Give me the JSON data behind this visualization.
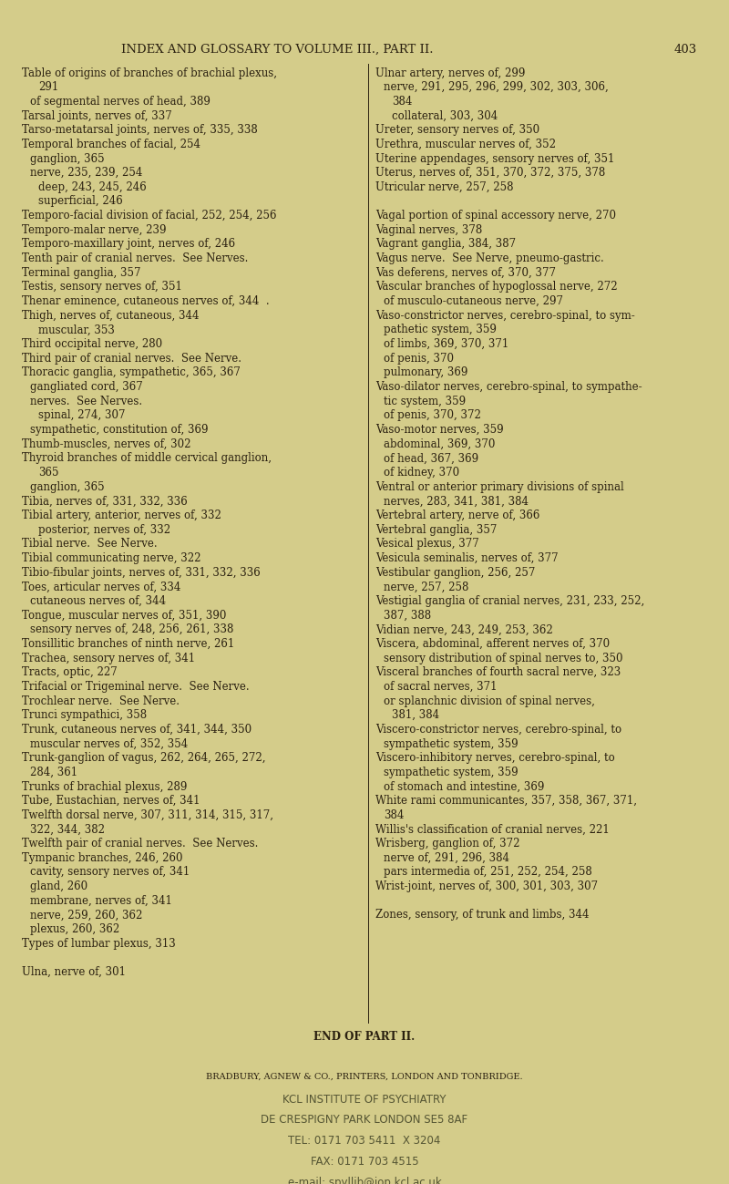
{
  "bg_color": "#d4cc8a",
  "header": "INDEX AND GLOSSARY TO VOLUME III., PART II.",
  "page_num": "403",
  "left_col_lines": [
    "Table of origins of branches of brachial plexus,",
    "        291",
    "    of segmental nerves of head, 389",
    "Tarsal joints, nerves of, 337",
    "Tarso-metatarsal joints, nerves of, 335, 338",
    "Temporal branches of facial, 254",
    "    ganglion, 365",
    "    nerve, 235, 239, 254",
    "        deep, 243, 245, 246",
    "        superficial, 246",
    "Temporo-facial division of facial, 252, 254, 256",
    "Temporo-malar nerve, 239",
    "Temporo-maxillary joint, nerves of, 246",
    "Tenth pair of cranial nerves.  See Nerves.",
    "Terminal ganglia, 357",
    "Testis, sensory nerves of, 351",
    "Thenar eminence, cutaneous nerves of, 344  .",
    "Thigh, nerves of, cutaneous, 344",
    "        muscular, 353",
    "Third occipital nerve, 280",
    "Third pair of cranial nerves.  See Nerve.",
    "Thoracic ganglia, sympathetic, 365, 367",
    "    gangliated cord, 367",
    "    nerves.  See Nerves.",
    "        spinal, 274, 307",
    "    sympathetic, constitution of, 369",
    "Thumb-muscles, nerves of, 302",
    "Thyroid branches of middle cervical ganglion,",
    "        365",
    "    ganglion, 365",
    "Tibia, nerves of, 331, 332, 336",
    "Tibial artery, anterior, nerves of, 332",
    "        posterior, nerves of, 332",
    "Tibial nerve.  See Nerve.",
    "Tibial communicating nerve, 322",
    "Tibio-fibular joints, nerves of, 331, 332, 336",
    "Toes, articular nerves of, 334",
    "    cutaneous nerves of, 344",
    "Tongue, muscular nerves of, 351, 390",
    "    sensory nerves of, 248, 256, 261, 338",
    "Tonsillitic branches of ninth nerve, 261",
    "Trachea, sensory nerves of, 341",
    "Tracts, optic, 227",
    "Trifacial or Trigeminal nerve.  See Nerve.",
    "Trochlear nerve.  See Nerve.",
    "Trunci sympathici, 358",
    "Trunk, cutaneous nerves of, 341, 344, 350",
    "    muscular nerves of, 352, 354",
    "Trunk-ganglion of vagus, 262, 264, 265, 272,",
    "    284, 361",
    "Trunks of brachial plexus, 289",
    "Tube, Eustachian, nerves of, 341",
    "Twelfth dorsal nerve, 307, 311, 314, 315, 317,",
    "    322, 344, 382",
    "Twelfth pair of cranial nerves.  See Nerves.",
    "Tympanic branches, 246, 260",
    "    cavity, sensory nerves of, 341",
    "    gland, 260",
    "    membrane, nerves of, 341",
    "    nerve, 259, 260, 362",
    "    plexus, 260, 362",
    "Types of lumbar plexus, 313",
    "",
    "Ulna, nerve of, 301"
  ],
  "right_col_lines": [
    "Ulnar artery, nerves of, 299",
    "    nerve, 291, 295, 296, 299, 302, 303, 306,",
    "        384",
    "        collateral, 303, 304",
    "Ureter, sensory nerves of, 350",
    "Urethra, muscular nerves of, 352",
    "Uterine appendages, sensory nerves of, 351",
    "Uterus, nerves of, 351, 370, 372, 375, 378",
    "Utricular nerve, 257, 258",
    "",
    "Vagal portion of spinal accessory nerve, 270",
    "Vaginal nerves, 378",
    "Vagrant ganglia, 384, 387",
    "Vagus nerve.  See Nerve, pneumo-gastric.",
    "Vas deferens, nerves of, 370, 377",
    "Vascular branches of hypoglossal nerve, 272",
    "    of musculo-cutaneous nerve, 297",
    "Vaso-constrictor nerves, cerebro-spinal, to sym-",
    "    pathetic system, 359",
    "    of limbs, 369, 370, 371",
    "    of penis, 370",
    "    pulmonary, 369",
    "Vaso-dilator nerves, cerebro-spinal, to sympathe-",
    "    tic system, 359",
    "    of penis, 370, 372",
    "Vaso-motor nerves, 359",
    "    abdominal, 369, 370",
    "    of head, 367, 369",
    "    of kidney, 370",
    "Ventral or anterior primary divisions of spinal",
    "    nerves, 283, 341, 381, 384",
    "Vertebral artery, nerve of, 366",
    "Vertebral ganglia, 357",
    "Vesical plexus, 377",
    "Vesicula seminalis, nerves of, 377",
    "Vestibular ganglion, 256, 257",
    "    nerve, 257, 258",
    "Vestigial ganglia of cranial nerves, 231, 233, 252,",
    "    387, 388",
    "Vidian nerve, 243, 249, 253, 362",
    "Viscera, abdominal, afferent nerves of, 370",
    "    sensory distribution of spinal nerves to, 350",
    "Visceral branches of fourth sacral nerve, 323",
    "    of sacral nerves, 371",
    "    or splanchnic division of spinal nerves,",
    "        381, 384",
    "Viscero-constrictor nerves, cerebro-spinal, to",
    "    sympathetic system, 359",
    "Viscero-inhibitory nerves, cerebro-spinal, to",
    "    sympathetic system, 359",
    "    of stomach and intestine, 369",
    "White rami communicantes, 357, 358, 367, 371,",
    "    384",
    "Willis's classification of cranial nerves, 221",
    "Wrisberg, ganglion of, 372",
    "    nerve of, 291, 296, 384",
    "    pars intermedia of, 251, 252, 254, 258",
    "Wrist-joint, nerves of, 300, 301, 303, 307",
    "",
    "Zones, sensory, of trunk and limbs, 344"
  ],
  "footer_lines": [
    "END OF PART II.",
    "",
    "BRADBURY, AGNEW & CO., PRINTERS, LONDON AND TONBRIDGE.",
    "KCL INSTITUTE OF PSYCHIATRY",
    "DE CRESPIGNY PARK LONDON SE5 8AF",
    "TEL: 0171 703 5411  X 3204",
    "FAX: 0171 703 4515",
    "e-mail: spyllib@iop.kcl.ac.uk"
  ],
  "text_color": "#2a2010",
  "header_color": "#2a2010",
  "footer_text_color": "#555533",
  "font_size": 8.5,
  "header_font_size": 9.5,
  "footer_font_size": 8.5
}
